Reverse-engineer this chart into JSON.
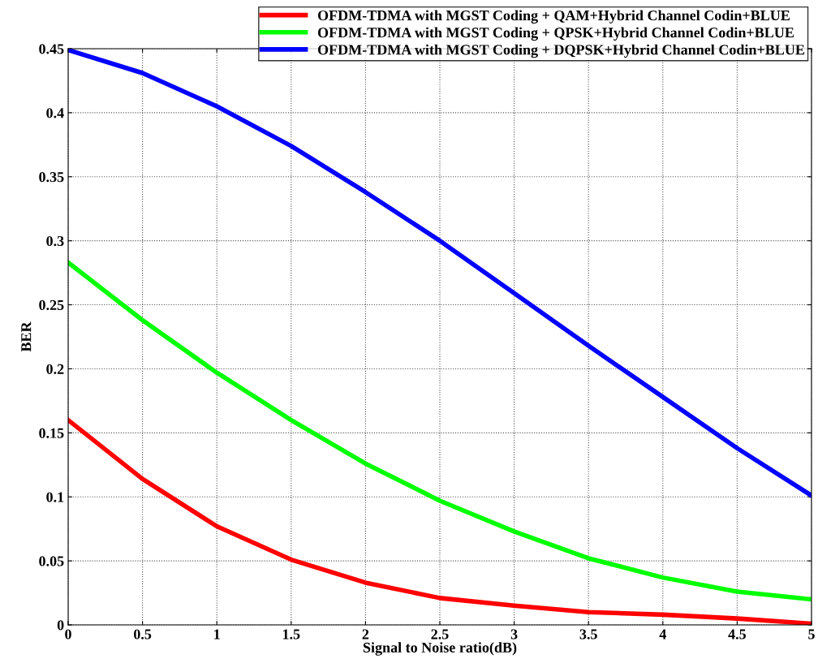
{
  "chart_data": {
    "type": "line",
    "xlabel": "Signal to Noise ratio(dB)",
    "ylabel": "BER",
    "x": [
      0,
      0.5,
      1,
      1.5,
      2,
      2.5,
      3,
      3.5,
      4,
      4.5,
      5
    ],
    "series": [
      {
        "name": "OFDM-TDMA with MGST Coding + QAM+Hybrid Channel Codin+BLUE",
        "color": "#ff0000",
        "values": [
          0.16,
          0.114,
          0.077,
          0.051,
          0.033,
          0.021,
          0.015,
          0.01,
          0.008,
          0.005,
          0.001
        ]
      },
      {
        "name": "OFDM-TDMA with MGST Coding + QPSK+Hybrid Channel Codin+BLUE",
        "color": "#00ff00",
        "values": [
          0.283,
          0.238,
          0.197,
          0.16,
          0.126,
          0.097,
          0.073,
          0.052,
          0.037,
          0.026,
          0.02
        ]
      },
      {
        "name": "OFDM-TDMA with MGST Coding + DQPSK+Hybrid Channel Codin+BLUE",
        "color": "#0000ff",
        "values": [
          0.449,
          0.431,
          0.405,
          0.374,
          0.338,
          0.3,
          0.259,
          0.218,
          0.178,
          0.138,
          0.101
        ]
      }
    ],
    "xlim": [
      0,
      5
    ],
    "xticks": [
      0,
      0.5,
      1,
      1.5,
      2,
      2.5,
      3,
      3.5,
      4,
      4.5,
      5
    ],
    "ylim": [
      0,
      0.45
    ],
    "yticks": [
      0,
      0.05,
      0.1,
      0.15,
      0.2,
      0.25,
      0.3,
      0.35,
      0.4,
      0.45
    ],
    "grid": true,
    "legend": "top right",
    "marker": "none",
    "line_style": "solid"
  }
}
